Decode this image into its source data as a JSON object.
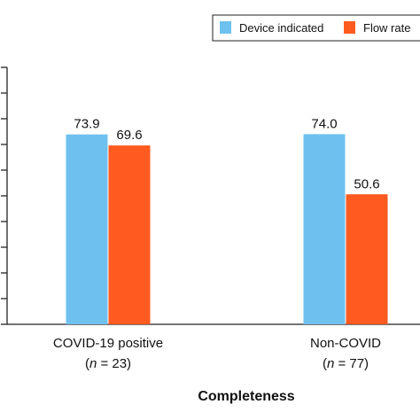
{
  "chart_data": {
    "type": "bar",
    "title": "",
    "xlabel": "Completeness",
    "ylabel": "",
    "ylim": [
      0,
      100
    ],
    "categories": [
      {
        "line1": "COVID-19 positive",
        "line2_italic": "n",
        "line2_rest": " = 23)"
      },
      {
        "line1": "Non-COVID",
        "line2_italic": "n",
        "line2_rest": " = 77)"
      }
    ],
    "series": [
      {
        "name": "Device indicated",
        "color": "#6ec1ef",
        "values": [
          73.9,
          74.0
        ],
        "labels": [
          "73.9",
          "74.0"
        ]
      },
      {
        "name": "Flow rate",
        "color": "#ff5a1f",
        "values": [
          69.6,
          50.6
        ],
        "labels": [
          "69.6",
          "50.6"
        ]
      }
    ],
    "legend_position": "top-right",
    "grid": false
  }
}
